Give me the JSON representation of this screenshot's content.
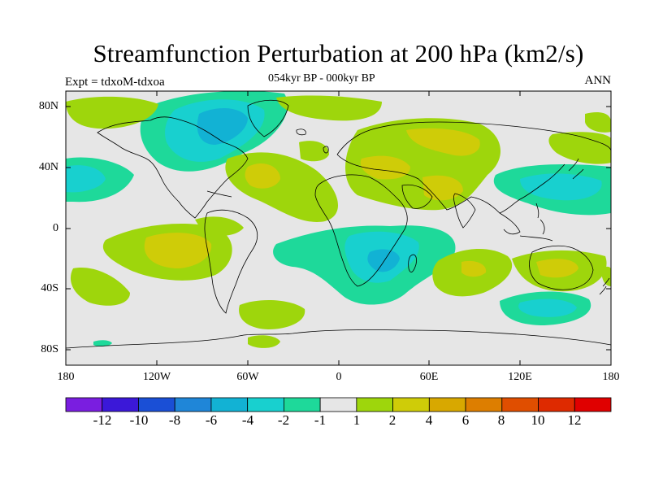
{
  "title": "Streamfunction Perturbation at 200 hPa (km2/s)",
  "left_label": "Expt = tdxoM-tdxoa",
  "center_label": "054kyr BP - 000kyr BP",
  "right_label": "ANN",
  "y_tick_labels": [
    "80N",
    "40N",
    "0",
    "40S",
    "80S"
  ],
  "x_tick_labels": [
    "180",
    "120W",
    "60W",
    "0",
    "60E",
    "120E",
    "180"
  ],
  "colorbar": {
    "labels": [
      "-12",
      "-10",
      "-8",
      "-6",
      "-4",
      "-2",
      "-1",
      "1",
      "2",
      "4",
      "6",
      "8",
      "10",
      "12"
    ],
    "colors": [
      "#7a1ee0",
      "#3b18d8",
      "#1a4fd6",
      "#1f86d8",
      "#12b2d4",
      "#18d0cf",
      "#1ed99a",
      "#e6e6e6",
      "#9ed60c",
      "#cfcc08",
      "#d8a800",
      "#dd7e00",
      "#e04e00",
      "#de2a00",
      "#e00000"
    ]
  },
  "map_colors": {
    "background": "#e6e6e6",
    "neg1": "#1ed99a",
    "neg2": "#18d0cf",
    "neg4": "#12b2d4",
    "pos1": "#9ed60c",
    "pos2": "#cfcc08"
  }
}
